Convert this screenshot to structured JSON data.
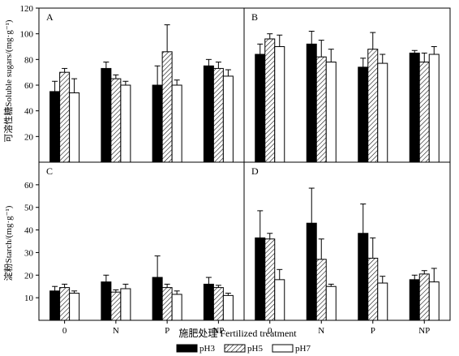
{
  "figure": {
    "xlabel": "施肥处理 Fertilized treatment",
    "ylabel_top": "可溶性糖Soluble sugars/(mg·g⁻¹)",
    "ylabel_bottom": "淀粉Starch/(mg·g⁻¹)",
    "legend": [
      "pH3",
      "pH5",
      "pH7"
    ],
    "fills": {
      "pH3": "#000000",
      "pH5": "hatch",
      "pH7": "#ffffff"
    },
    "categories": [
      "0",
      "N",
      "P",
      "NP"
    ]
  },
  "chart_data": [
    {
      "panel": "A",
      "type": "bar",
      "ylim": [
        0,
        120
      ],
      "yticks": [
        20,
        40,
        60,
        80,
        100,
        120
      ],
      "categories": [
        "0",
        "N",
        "P",
        "NP"
      ],
      "series": [
        {
          "name": "pH3",
          "values": [
            55,
            73,
            60,
            75
          ],
          "errors": [
            8,
            5,
            15,
            5
          ]
        },
        {
          "name": "pH5",
          "values": [
            70,
            65,
            86,
            73
          ],
          "errors": [
            3,
            3,
            21,
            5
          ]
        },
        {
          "name": "pH7",
          "values": [
            54,
            60,
            60,
            67
          ],
          "errors": [
            11,
            3,
            4,
            5
          ]
        }
      ]
    },
    {
      "panel": "B",
      "type": "bar",
      "ylim": [
        0,
        120
      ],
      "yticks": [
        20,
        40,
        60,
        80,
        100,
        120
      ],
      "categories": [
        "0",
        "N",
        "P",
        "NP"
      ],
      "series": [
        {
          "name": "pH3",
          "values": [
            84,
            92,
            74,
            85
          ],
          "errors": [
            8,
            10,
            7,
            2
          ]
        },
        {
          "name": "pH5",
          "values": [
            96,
            82,
            88,
            78
          ],
          "errors": [
            4,
            13,
            13,
            7
          ]
        },
        {
          "name": "pH7",
          "values": [
            90,
            78,
            77,
            84
          ],
          "errors": [
            9,
            10,
            7,
            6
          ]
        }
      ]
    },
    {
      "panel": "C",
      "type": "bar",
      "ylim": [
        0,
        70
      ],
      "yticks": [
        10,
        20,
        30,
        40,
        50,
        60
      ],
      "categories": [
        "0",
        "N",
        "P",
        "NP"
      ],
      "series": [
        {
          "name": "pH3",
          "values": [
            13,
            17,
            19,
            16
          ],
          "errors": [
            2,
            3,
            9.5,
            3
          ]
        },
        {
          "name": "pH5",
          "values": [
            14.5,
            12.5,
            14.5,
            14.5
          ],
          "errors": [
            1.5,
            1,
            1.5,
            1
          ]
        },
        {
          "name": "pH7",
          "values": [
            12,
            14,
            11.5,
            11
          ],
          "errors": [
            1,
            2,
            1.5,
            1
          ]
        }
      ]
    },
    {
      "panel": "D",
      "type": "bar",
      "ylim": [
        0,
        70
      ],
      "yticks": [
        10,
        20,
        30,
        40,
        50,
        60
      ],
      "categories": [
        "0",
        "N",
        "P",
        "NP"
      ],
      "series": [
        {
          "name": "pH3",
          "values": [
            36.5,
            43,
            38.5,
            18
          ],
          "errors": [
            12,
            15.5,
            13,
            2
          ]
        },
        {
          "name": "pH5",
          "values": [
            36,
            27,
            27.5,
            20.5
          ],
          "errors": [
            2.5,
            9,
            9,
            1.5
          ]
        },
        {
          "name": "pH7",
          "values": [
            18,
            15,
            16.5,
            17
          ],
          "errors": [
            4.5,
            1,
            3,
            6
          ]
        }
      ]
    }
  ]
}
